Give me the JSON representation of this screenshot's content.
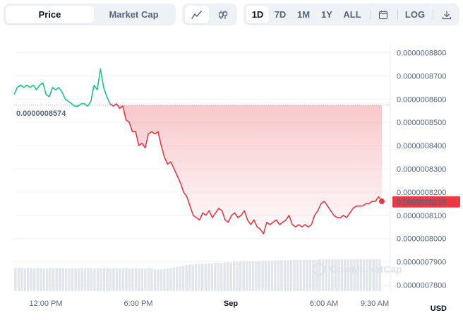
{
  "toolbar": {
    "type_tabs": [
      {
        "label": "Price",
        "active": true
      },
      {
        "label": "Market Cap",
        "active": false
      }
    ],
    "view_icons": [
      {
        "icon": "line-chart-icon",
        "active": true
      },
      {
        "icon": "candlestick-icon",
        "active": false
      }
    ],
    "ranges": [
      {
        "label": "1D",
        "active": true
      },
      {
        "label": "7D",
        "active": false
      },
      {
        "label": "1M",
        "active": false
      },
      {
        "label": "1Y",
        "active": false
      },
      {
        "label": "ALL",
        "active": false
      }
    ],
    "calendar_icon": "calendar-icon",
    "log_label": "LOG",
    "download_icon": "download-icon"
  },
  "chart_data": {
    "type": "area",
    "y_ticks": [
      "0.0000008800",
      "0.0000008700",
      "0.0000008600",
      "0.0000008500",
      "0.0000008400",
      "0.0000008300",
      "0.0000008200",
      "0.0000008100",
      "0.0000008000",
      "0.0000007900",
      "0.0000007800"
    ],
    "ylim": [
      7.8e-07,
      8.8e-07
    ],
    "x_ticks": [
      {
        "label": "12:00 PM",
        "bold": false
      },
      {
        "label": "6:00 PM",
        "bold": false
      },
      {
        "label": "Sep",
        "bold": true
      },
      {
        "label": "6:00 AM",
        "bold": false
      },
      {
        "label": "9:30 AM",
        "bold": false
      }
    ],
    "open_price_label": "0.0000008574",
    "open_price": 8.574e-07,
    "current_price_label": "0.0000008158",
    "current_price": 8.158e-07,
    "currency": "USD",
    "up_color": "#16c784",
    "down_color": "#ea3943",
    "series": [
      {
        "values": [
          8.62e-07,
          8.65e-07,
          8.66e-07,
          8.65e-07,
          8.66e-07,
          8.65e-07,
          8.66e-07,
          8.64e-07,
          8.66e-07,
          8.67e-07,
          8.62e-07,
          8.61e-07,
          8.65e-07,
          8.64e-07,
          8.65e-07,
          8.63e-07,
          8.6e-07,
          8.59e-07,
          8.58e-07,
          8.57e-07,
          8.57e-07,
          8.58e-07,
          8.58e-07,
          8.57e-07,
          8.59e-07,
          8.66e-07,
          8.64e-07,
          8.73e-07,
          8.65e-07,
          8.61e-07,
          8.58e-07,
          8.57e-07,
          8.58e-07,
          8.56e-07,
          8.57e-07,
          8.51e-07,
          8.5e-07,
          8.46e-07,
          8.46e-07,
          8.4e-07,
          8.41e-07,
          8.39e-07,
          8.45e-07,
          8.46e-07,
          8.45e-07,
          8.46e-07,
          8.4e-07,
          8.35e-07,
          8.32e-07,
          8.33e-07,
          8.3e-07,
          8.27e-07,
          8.24e-07,
          8.2e-07,
          8.18e-07,
          8.14e-07,
          8.1e-07,
          8.09e-07,
          8.08e-07,
          8.11e-07,
          8.1e-07,
          8.12e-07,
          8.09e-07,
          8.11e-07,
          8.13e-07,
          8.12e-07,
          8.08e-07,
          8.07e-07,
          8.1e-07,
          8.11e-07,
          8.09e-07,
          8.1e-07,
          8.12e-07,
          8.08e-07,
          8.06e-07,
          8.08e-07,
          8.05e-07,
          8.04e-07,
          8.02e-07,
          8.07e-07,
          8.06e-07,
          8.07e-07,
          8.08e-07,
          8.06e-07,
          8.07e-07,
          8.08e-07,
          8.1e-07,
          8.06e-07,
          8.05e-07,
          8.06e-07,
          8.05e-07,
          8.06e-07,
          8.05e-07,
          8.06e-07,
          8.1e-07,
          8.12e-07,
          8.15e-07,
          8.16e-07,
          8.14e-07,
          8.12e-07,
          8.1e-07,
          8.09e-07,
          8.09e-07,
          8.1e-07,
          8.09e-07,
          8.11e-07,
          8.13e-07,
          8.14e-07,
          8.14e-07,
          8.14e-07,
          8.15e-07,
          8.15e-07,
          8.16e-07,
          8.16e-07,
          8.18e-07,
          8.16e-07
        ]
      }
    ]
  },
  "volume": {
    "values": [
      0.45,
      0.45,
      0.45,
      0.44,
      0.45,
      0.45,
      0.44,
      0.45,
      0.45,
      0.44,
      0.44,
      0.45,
      0.44,
      0.45,
      0.45,
      0.45,
      0.44,
      0.44,
      0.45,
      0.44,
      0.44,
      0.45,
      0.44,
      0.45,
      0.45,
      0.44,
      0.45,
      0.44,
      0.45,
      0.45,
      0.44,
      0.44,
      0.45,
      0.44,
      0.45,
      0.45,
      0.44,
      0.44,
      0.45,
      0.44,
      0.44,
      0.44,
      0.45,
      0.45,
      0.42,
      0.42,
      0.43,
      0.43,
      0.44,
      0.45,
      0.46,
      0.47,
      0.48,
      0.49,
      0.51,
      0.52,
      0.52,
      0.53,
      0.53,
      0.53,
      0.54,
      0.54,
      0.54,
      0.55,
      0.55,
      0.55,
      0.56,
      0.56,
      0.56,
      0.57,
      0.57,
      0.57,
      0.57,
      0.58,
      0.58,
      0.58,
      0.58,
      0.58,
      0.59,
      0.59,
      0.59,
      0.59,
      0.6,
      0.6,
      0.6,
      0.6,
      0.6,
      0.61,
      0.61,
      0.61,
      0.61,
      0.61,
      0.61,
      0.61,
      0.61,
      0.61,
      0.62,
      0.62,
      0.62,
      0.62,
      0.62,
      0.62,
      0.62,
      0.62,
      0.62,
      0.62,
      0.62,
      0.62,
      0.62,
      0.62,
      0.62,
      0.62,
      0.62,
      0.62,
      0.62,
      0.62
    ]
  },
  "watermark": {
    "text": "CoinMarketCap",
    "icon": "coinmarketcap-logo-icon"
  }
}
